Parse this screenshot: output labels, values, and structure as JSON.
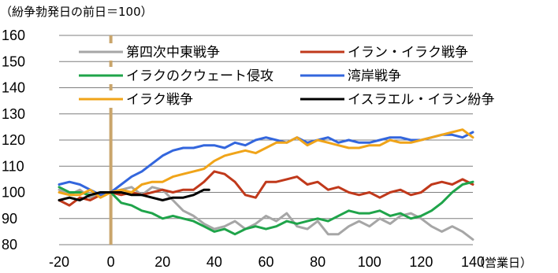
{
  "chart_data": {
    "type": "line",
    "title": "",
    "ylabel_note": "（紛争勃発日の前日＝100）",
    "xlabel_note": "（営業日）",
    "xlim": [
      -20,
      140
    ],
    "ylim": [
      80,
      160
    ],
    "xticks": [
      -20,
      0,
      20,
      40,
      60,
      80,
      100,
      120,
      140
    ],
    "yticks": [
      80,
      90,
      100,
      110,
      120,
      130,
      140,
      150,
      160
    ],
    "grid": "horizontal",
    "vertical_marker": {
      "x": 0,
      "color": "#c9a56b"
    },
    "legend_placement": "top",
    "series": [
      {
        "name": "第四次中東戦争",
        "color": "#a6a6a6",
        "points": [
          [
            -20,
            101
          ],
          [
            -16,
            99
          ],
          [
            -12,
            101
          ],
          [
            -8,
            98
          ],
          [
            -4,
            100
          ],
          [
            0,
            100
          ],
          [
            4,
            101
          ],
          [
            8,
            102
          ],
          [
            12,
            99
          ],
          [
            16,
            102
          ],
          [
            20,
            101
          ],
          [
            24,
            97
          ],
          [
            28,
            93
          ],
          [
            32,
            91
          ],
          [
            36,
            88
          ],
          [
            40,
            86
          ],
          [
            44,
            87
          ],
          [
            48,
            89
          ],
          [
            52,
            86
          ],
          [
            56,
            88
          ],
          [
            60,
            91
          ],
          [
            64,
            89
          ],
          [
            68,
            92
          ],
          [
            72,
            87
          ],
          [
            76,
            86
          ],
          [
            80,
            89
          ],
          [
            84,
            84
          ],
          [
            88,
            84
          ],
          [
            92,
            87
          ],
          [
            96,
            89
          ],
          [
            100,
            87
          ],
          [
            104,
            90
          ],
          [
            108,
            88
          ],
          [
            112,
            91
          ],
          [
            116,
            92
          ],
          [
            120,
            90
          ],
          [
            124,
            87
          ],
          [
            128,
            85
          ],
          [
            132,
            87
          ],
          [
            136,
            85
          ],
          [
            140,
            82
          ]
        ]
      },
      {
        "name": "イラン・イラク戦争",
        "color": "#c0391b",
        "points": [
          [
            -20,
            97
          ],
          [
            -16,
            95
          ],
          [
            -12,
            98
          ],
          [
            -8,
            97
          ],
          [
            -4,
            99
          ],
          [
            0,
            100
          ],
          [
            4,
            99
          ],
          [
            8,
            100
          ],
          [
            12,
            99
          ],
          [
            16,
            100
          ],
          [
            20,
            101
          ],
          [
            24,
            100
          ],
          [
            28,
            101
          ],
          [
            32,
            101
          ],
          [
            36,
            104
          ],
          [
            40,
            108
          ],
          [
            44,
            107
          ],
          [
            48,
            104
          ],
          [
            52,
            99
          ],
          [
            56,
            98
          ],
          [
            60,
            104
          ],
          [
            64,
            104
          ],
          [
            68,
            105
          ],
          [
            72,
            106
          ],
          [
            76,
            103
          ],
          [
            80,
            104
          ],
          [
            84,
            101
          ],
          [
            88,
            102
          ],
          [
            92,
            100
          ],
          [
            96,
            99
          ],
          [
            100,
            100
          ],
          [
            104,
            98
          ],
          [
            108,
            100
          ],
          [
            112,
            101
          ],
          [
            116,
            99
          ],
          [
            120,
            100
          ],
          [
            124,
            103
          ],
          [
            128,
            104
          ],
          [
            132,
            103
          ],
          [
            136,
            105
          ],
          [
            140,
            103
          ]
        ]
      },
      {
        "name": "イラクのクウェート侵攻",
        "color": "#1fa44a",
        "points": [
          [
            -20,
            102
          ],
          [
            -16,
            100
          ],
          [
            -12,
            100
          ],
          [
            -8,
            99
          ],
          [
            -4,
            100
          ],
          [
            0,
            100
          ],
          [
            4,
            96
          ],
          [
            8,
            95
          ],
          [
            12,
            93
          ],
          [
            16,
            92
          ],
          [
            20,
            90
          ],
          [
            24,
            91
          ],
          [
            28,
            90
          ],
          [
            32,
            89
          ],
          [
            36,
            87
          ],
          [
            40,
            85
          ],
          [
            44,
            86
          ],
          [
            48,
            84
          ],
          [
            52,
            86
          ],
          [
            56,
            87
          ],
          [
            60,
            86
          ],
          [
            64,
            87
          ],
          [
            68,
            89
          ],
          [
            72,
            88
          ],
          [
            76,
            89
          ],
          [
            80,
            90
          ],
          [
            84,
            89
          ],
          [
            88,
            91
          ],
          [
            92,
            93
          ],
          [
            96,
            92
          ],
          [
            100,
            92
          ],
          [
            104,
            93
          ],
          [
            108,
            91
          ],
          [
            112,
            92
          ],
          [
            116,
            90
          ],
          [
            120,
            91
          ],
          [
            124,
            93
          ],
          [
            128,
            96
          ],
          [
            132,
            100
          ],
          [
            136,
            103
          ],
          [
            140,
            104
          ]
        ]
      },
      {
        "name": "湾岸戦争",
        "color": "#3366dd",
        "points": [
          [
            -20,
            103
          ],
          [
            -16,
            104
          ],
          [
            -12,
            103
          ],
          [
            -8,
            101
          ],
          [
            -4,
            99
          ],
          [
            0,
            100
          ],
          [
            4,
            103
          ],
          [
            8,
            106
          ],
          [
            12,
            108
          ],
          [
            16,
            111
          ],
          [
            20,
            114
          ],
          [
            24,
            116
          ],
          [
            28,
            117
          ],
          [
            32,
            117
          ],
          [
            36,
            118
          ],
          [
            40,
            118
          ],
          [
            44,
            117
          ],
          [
            48,
            119
          ],
          [
            52,
            118
          ],
          [
            56,
            120
          ],
          [
            60,
            121
          ],
          [
            64,
            120
          ],
          [
            68,
            119
          ],
          [
            72,
            121
          ],
          [
            76,
            119
          ],
          [
            80,
            120
          ],
          [
            84,
            121
          ],
          [
            88,
            119
          ],
          [
            92,
            120
          ],
          [
            96,
            119
          ],
          [
            100,
            119
          ],
          [
            104,
            120
          ],
          [
            108,
            121
          ],
          [
            112,
            121
          ],
          [
            116,
            120
          ],
          [
            120,
            120
          ],
          [
            124,
            121
          ],
          [
            128,
            122
          ],
          [
            132,
            122
          ],
          [
            136,
            121
          ],
          [
            140,
            123
          ]
        ]
      },
      {
        "name": "イラク戦争",
        "color": "#f0a419",
        "points": [
          [
            -20,
            100
          ],
          [
            -16,
            99
          ],
          [
            -12,
            99
          ],
          [
            -8,
            101
          ],
          [
            -4,
            98
          ],
          [
            0,
            100
          ],
          [
            4,
            101
          ],
          [
            8,
            100
          ],
          [
            12,
            103
          ],
          [
            16,
            104
          ],
          [
            20,
            104
          ],
          [
            24,
            106
          ],
          [
            28,
            107
          ],
          [
            32,
            108
          ],
          [
            36,
            109
          ],
          [
            40,
            112
          ],
          [
            44,
            114
          ],
          [
            48,
            115
          ],
          [
            52,
            116
          ],
          [
            56,
            115
          ],
          [
            60,
            117
          ],
          [
            64,
            119
          ],
          [
            68,
            119
          ],
          [
            72,
            121
          ],
          [
            76,
            118
          ],
          [
            80,
            120
          ],
          [
            84,
            119
          ],
          [
            88,
            118
          ],
          [
            92,
            117
          ],
          [
            96,
            117
          ],
          [
            100,
            118
          ],
          [
            104,
            118
          ],
          [
            108,
            120
          ],
          [
            112,
            119
          ],
          [
            116,
            119
          ],
          [
            120,
            120
          ],
          [
            124,
            121
          ],
          [
            128,
            122
          ],
          [
            132,
            123
          ],
          [
            136,
            124
          ],
          [
            140,
            121
          ]
        ]
      },
      {
        "name": "イスラエル・イラン紛争",
        "color": "#000000",
        "points": [
          [
            -20,
            97
          ],
          [
            -16,
            98
          ],
          [
            -12,
            97
          ],
          [
            -8,
            99
          ],
          [
            -4,
            100
          ],
          [
            0,
            100
          ],
          [
            4,
            100
          ],
          [
            8,
            99
          ],
          [
            12,
            99
          ],
          [
            16,
            98
          ],
          [
            20,
            97
          ],
          [
            24,
            98
          ],
          [
            28,
            98
          ],
          [
            32,
            99
          ],
          [
            34,
            100
          ],
          [
            36,
            101
          ],
          [
            38,
            101
          ]
        ]
      }
    ]
  }
}
